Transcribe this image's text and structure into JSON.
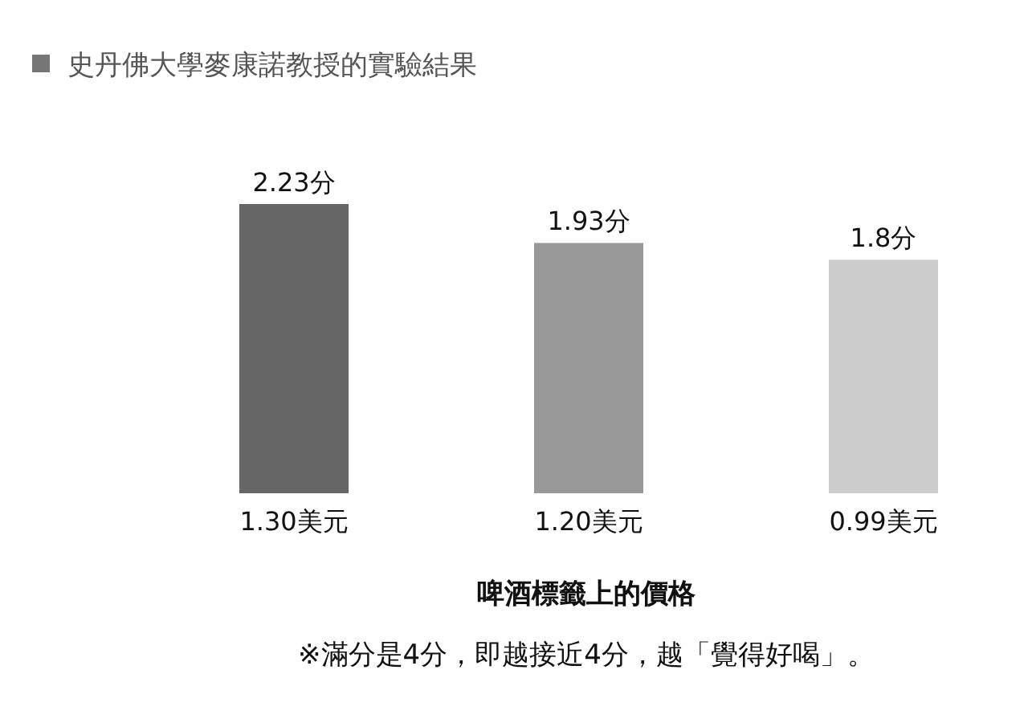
{
  "chart_data": {
    "type": "bar",
    "title": "史丹佛大學麥康諾教授的實驗結果",
    "xlabel": "啤酒標籤上的價格",
    "annotations": [
      "※滿分是4分，即越接近4分，越「覺得好喝」。"
    ],
    "categories": [
      "1.30美元",
      "1.20美元",
      "0.99美元"
    ],
    "values": [
      2.23,
      1.93,
      1.8
    ],
    "colors": [
      "#666666",
      "#999999",
      "#cccccc"
    ],
    "value_labels": [
      "2.23分",
      "1.93分",
      "1.8分"
    ]
  }
}
